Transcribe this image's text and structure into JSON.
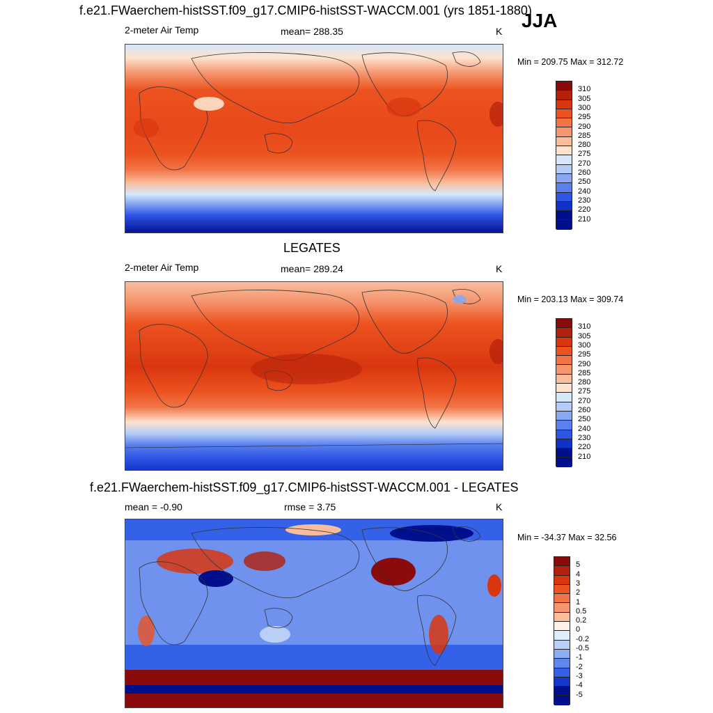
{
  "season": "JJA",
  "panels": [
    {
      "title": "f.e21.FWaerchem-histSST.f09_g17.CMIP6-histSST-WACCM.001 (yrs 1851-1880)",
      "left_label": "2-meter Air Temp",
      "center_label": "mean= 288.35",
      "units": "K",
      "minmax": "Min = 209.75 Max = 312.72",
      "colorbar": {
        "labels": [
          "310",
          "305",
          "300",
          "295",
          "290",
          "285",
          "280",
          "275",
          "270",
          "260",
          "250",
          "240",
          "230",
          "220",
          "210"
        ],
        "colors": [
          "#8b0a0a",
          "#b4200a",
          "#d9360f",
          "#ec5320",
          "#f27446",
          "#f5966f",
          "#f9bd9c",
          "#fde3cd",
          "#d6e7fa",
          "#b4ccf6",
          "#88a8f2",
          "#5a80ee",
          "#2f55e6",
          "#1032c9",
          "#000f8c"
        ]
      }
    },
    {
      "title": "LEGATES",
      "left_label": "2-meter Air Temp",
      "center_label": "mean= 289.24",
      "units": "K",
      "minmax": "Min = 203.13 Max = 309.74",
      "colorbar": {
        "labels": [
          "310",
          "305",
          "300",
          "295",
          "290",
          "285",
          "280",
          "275",
          "270",
          "260",
          "250",
          "240",
          "230",
          "220",
          "210"
        ],
        "colors": [
          "#8b0a0a",
          "#b4200a",
          "#d9360f",
          "#ec5320",
          "#f27446",
          "#f5966f",
          "#f9bd9c",
          "#fde3cd",
          "#d6e7fa",
          "#b4ccf6",
          "#88a8f2",
          "#5a80ee",
          "#2f55e6",
          "#1032c9",
          "#000f8c"
        ]
      }
    },
    {
      "title": "f.e21.FWaerchem-histSST.f09_g17.CMIP6-histSST-WACCM.001 - LEGATES",
      "left_label": "mean =  -0.90",
      "center_label": "rmse =   3.75",
      "units": "K",
      "minmax": "Min = -34.37 Max =  32.56",
      "colorbar": {
        "labels": [
          "5",
          "4",
          "3",
          "2",
          "1",
          "0.5",
          "0.2",
          "0",
          "-0.2",
          "-0.5",
          "-1",
          "-2",
          "-3",
          "-4",
          "-5"
        ],
        "colors": [
          "#8b0a0a",
          "#b4200a",
          "#d9360f",
          "#ec5320",
          "#f27446",
          "#f5966f",
          "#f9bd9c",
          "#fdf0e6",
          "#e0ecfb",
          "#b9cff6",
          "#8eaef2",
          "#5f87ee",
          "#3560e8",
          "#1537cc",
          "#000f8c"
        ]
      }
    }
  ]
}
